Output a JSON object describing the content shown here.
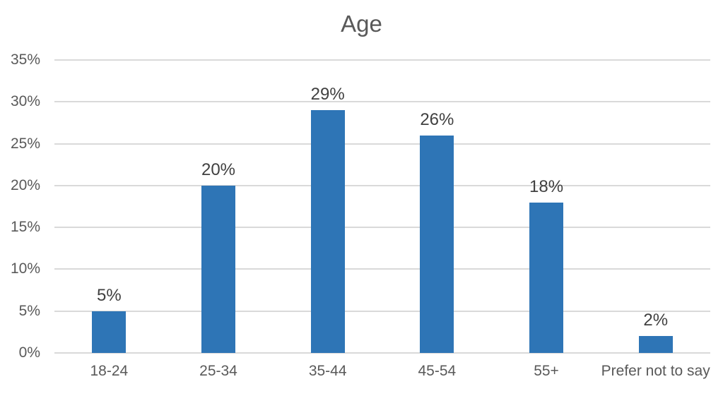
{
  "chart_data": {
    "type": "bar",
    "title": "Age",
    "categories": [
      "18-24",
      "25-34",
      "35-44",
      "45-54",
      "55+",
      "Prefer not to say"
    ],
    "values": [
      5,
      20,
      29,
      26,
      18,
      2
    ],
    "data_labels": [
      "5%",
      "20%",
      "29%",
      "26%",
      "18%",
      "2%"
    ],
    "y_ticks": [
      "0%",
      "5%",
      "10%",
      "15%",
      "20%",
      "25%",
      "30%",
      "35%"
    ],
    "ylim": [
      0,
      35
    ],
    "xlabel": "",
    "ylabel": "",
    "grid": "horizontal",
    "legend": "none",
    "colors": {
      "bar": "#2E75B6",
      "gridline": "#D9D9D9",
      "title_text": "#595959",
      "axis_text": "#595959",
      "data_label_text": "#404040",
      "background": "#FFFFFF"
    }
  }
}
